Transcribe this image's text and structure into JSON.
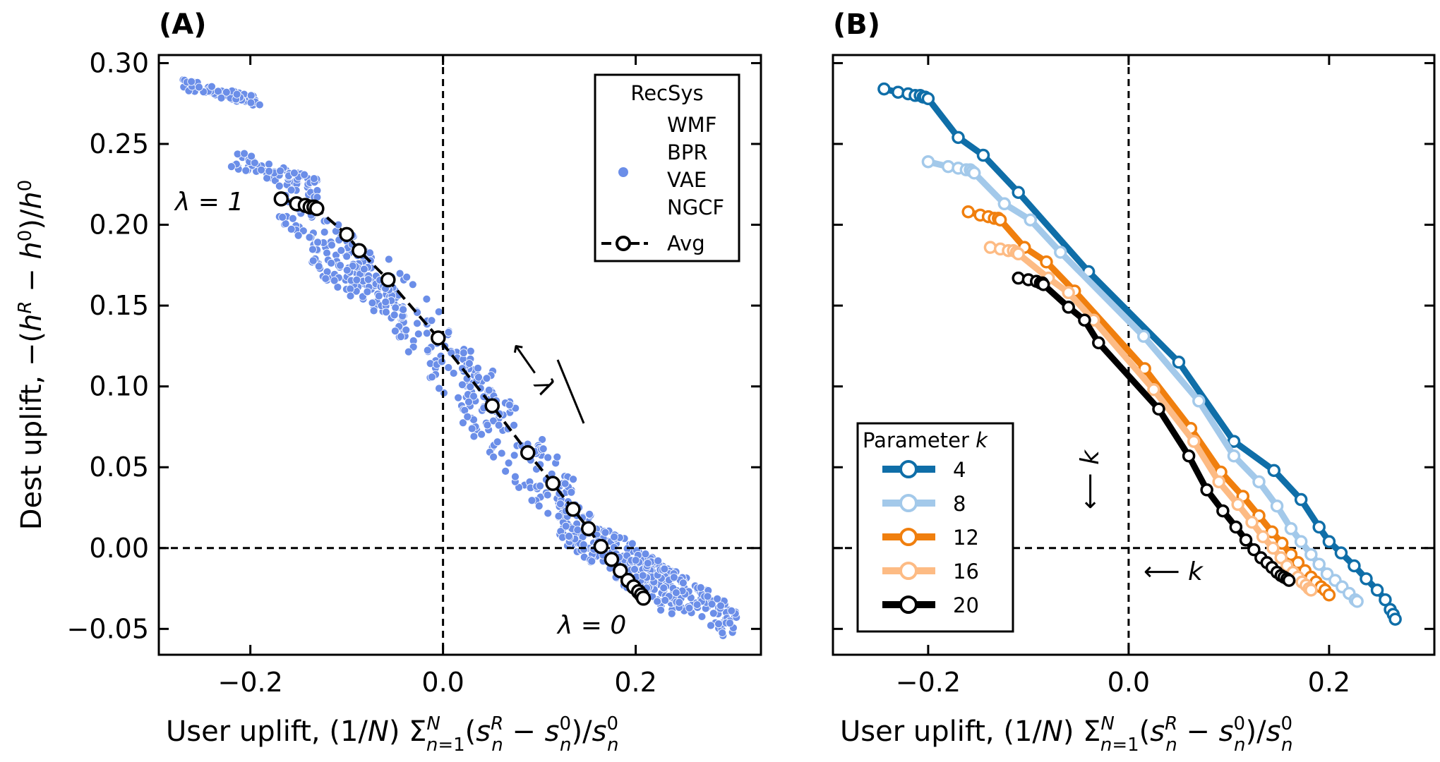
{
  "chart_data": [
    {
      "type": "scatter",
      "panel_label": "(A)",
      "xlabel": "User uplift,  (1/N) Σ_{n=1}^{N}(s_n^R − s_n^0)/s_n^0",
      "ylabel": "Dest uplift,  −(h^R − h^0)/h^0",
      "xlim": [
        -0.295,
        0.33
      ],
      "ylim": [
        -0.066,
        0.305
      ],
      "xticks": [
        "−0.2",
        "0.0",
        "0.2"
      ],
      "yticks": [
        "0.30",
        "0.25",
        "0.20",
        "0.15",
        "0.10",
        "0.05",
        "0.00",
        "−0.05"
      ],
      "reference_lines": {
        "x": 0.0,
        "y": 0.0,
        "style": "dashed"
      },
      "legend": {
        "title": "RecSys",
        "entries": [
          "WMF",
          "BPR",
          "VAE",
          "NGCF"
        ],
        "avg_label": "Avg",
        "placement": "top-right"
      },
      "annotations": {
        "lambda_one": "λ = 1",
        "lambda_zero": "λ = 0",
        "arrow": "⟵ λ"
      },
      "scatter_color": "#6b8ee8",
      "scatter_clusters": [
        {
          "x": [
            -0.27,
            -0.19
          ],
          "y": [
            0.276,
            0.287
          ],
          "n": 70
        },
        {
          "x": [
            -0.22,
            -0.13
          ],
          "y": [
            0.222,
            0.242
          ],
          "n": 70
        },
        {
          "x": [
            -0.17,
            -0.07
          ],
          "y": [
            0.17,
            0.215
          ],
          "n": 90
        },
        {
          "x": [
            -0.14,
            -0.04
          ],
          "y": [
            0.145,
            0.185
          ],
          "n": 90
        },
        {
          "x": [
            -0.06,
            0.06
          ],
          "y": [
            0.08,
            0.16
          ],
          "n": 110
        },
        {
          "x": [
            0.02,
            0.14
          ],
          "y": [
            0.02,
            0.1
          ],
          "n": 120
        },
        {
          "x": [
            0.12,
            0.24
          ],
          "y": [
            -0.03,
            0.02
          ],
          "n": 240
        },
        {
          "x": [
            0.2,
            0.305
          ],
          "y": [
            -0.048,
            -0.01
          ],
          "n": 130
        }
      ],
      "avg_series": {
        "name": "Avg",
        "x": [
          -0.168,
          -0.152,
          -0.143,
          -0.138,
          -0.134,
          -0.131,
          -0.1,
          -0.087,
          -0.057,
          -0.005,
          0.051,
          0.088,
          0.114,
          0.135,
          0.151,
          0.164,
          0.175,
          0.184,
          0.192,
          0.198,
          0.203,
          0.206,
          0.208
        ],
        "y": [
          0.216,
          0.213,
          0.212,
          0.211,
          0.211,
          0.21,
          0.194,
          0.184,
          0.166,
          0.13,
          0.088,
          0.059,
          0.04,
          0.024,
          0.012,
          0.001,
          -0.007,
          -0.014,
          -0.02,
          -0.024,
          -0.027,
          -0.029,
          -0.031
        ]
      }
    },
    {
      "type": "line",
      "panel_label": "(B)",
      "xlabel": "User uplift,  (1/N) Σ_{n=1}^{N}(s_n^R − s_n^0)/s_n^0",
      "xlim": [
        -0.295,
        0.305
      ],
      "ylim": [
        -0.066,
        0.305
      ],
      "xticks": [
        "−0.2",
        "0.0",
        "0.2"
      ],
      "reference_lines": {
        "x": 0.0,
        "y": 0.0,
        "style": "dashed"
      },
      "legend": {
        "title": "Parameter k",
        "placement": "lower-left"
      },
      "annotations": {
        "down_arrow": "⟵ k",
        "left_arrow": "⟵ k"
      },
      "series": [
        {
          "name": "4",
          "color": "#0f6ea8",
          "x": [
            -0.244,
            -0.23,
            -0.22,
            -0.213,
            -0.208,
            -0.205,
            -0.203,
            -0.2,
            -0.17,
            -0.145,
            -0.11,
            -0.04,
            0.05,
            0.105,
            0.145,
            0.172,
            0.19,
            0.2,
            0.212,
            0.225,
            0.237,
            0.248,
            0.256,
            0.261,
            0.264,
            0.266
          ],
          "y": [
            0.284,
            0.282,
            0.281,
            0.28,
            0.28,
            0.279,
            0.279,
            0.278,
            0.254,
            0.243,
            0.22,
            0.171,
            0.115,
            0.066,
            0.048,
            0.03,
            0.013,
            0.004,
            -0.003,
            -0.011,
            -0.019,
            -0.026,
            -0.032,
            -0.038,
            -0.041,
            -0.044
          ]
        },
        {
          "name": "8",
          "color": "#a3c9ea",
          "x": [
            -0.2,
            -0.18,
            -0.17,
            -0.162,
            -0.158,
            -0.156,
            -0.154,
            -0.124,
            -0.098,
            -0.068,
            0.015,
            0.07,
            0.105,
            0.13,
            0.148,
            0.162,
            0.172,
            0.182,
            0.19,
            0.198,
            0.206,
            0.213,
            0.22,
            0.226,
            0.228
          ],
          "y": [
            0.239,
            0.236,
            0.235,
            0.234,
            0.234,
            0.233,
            0.232,
            0.213,
            0.203,
            0.183,
            0.131,
            0.091,
            0.057,
            0.041,
            0.026,
            0.012,
            0.004,
            -0.004,
            -0.01,
            -0.016,
            -0.02,
            -0.024,
            -0.028,
            -0.032,
            -0.033
          ]
        },
        {
          "name": "12",
          "color": "#f07f0e",
          "x": [
            -0.16,
            -0.148,
            -0.14,
            -0.134,
            -0.13,
            -0.128,
            -0.104,
            -0.082,
            -0.054,
            0.016,
            0.062,
            0.092,
            0.114,
            0.13,
            0.143,
            0.153,
            0.162,
            0.169,
            0.176,
            0.182,
            0.187,
            0.192,
            0.196,
            0.2
          ],
          "y": [
            0.208,
            0.206,
            0.205,
            0.204,
            0.204,
            0.203,
            0.186,
            0.177,
            0.159,
            0.111,
            0.074,
            0.047,
            0.032,
            0.02,
            0.01,
            0.003,
            -0.004,
            -0.009,
            -0.014,
            -0.018,
            -0.021,
            -0.024,
            -0.026,
            -0.029
          ]
        },
        {
          "name": "16",
          "color": "#fdbb84",
          "x": [
            -0.138,
            -0.128,
            -0.12,
            -0.115,
            -0.112,
            -0.11,
            -0.08,
            -0.06,
            -0.035,
            0.025,
            0.065,
            0.09,
            0.109,
            0.123,
            0.134,
            0.144,
            0.152,
            0.158,
            0.164,
            0.169,
            0.173,
            0.177,
            0.18,
            0.182
          ],
          "y": [
            0.186,
            0.185,
            0.184,
            0.184,
            0.183,
            0.182,
            0.167,
            0.158,
            0.141,
            0.098,
            0.066,
            0.041,
            0.027,
            0.016,
            0.007,
            0.0,
            -0.006,
            -0.011,
            -0.015,
            -0.018,
            -0.021,
            -0.023,
            -0.025,
            -0.026
          ]
        },
        {
          "name": "20",
          "color": "#000000",
          "x": [
            -0.11,
            -0.1,
            -0.092,
            -0.088,
            -0.086,
            -0.085,
            -0.06,
            -0.044,
            -0.03,
            0.03,
            0.06,
            0.078,
            0.094,
            0.107,
            0.117,
            0.125,
            0.132,
            0.138,
            0.143,
            0.148,
            0.152,
            0.155,
            0.158,
            0.16
          ],
          "y": [
            0.167,
            0.166,
            0.165,
            0.164,
            0.164,
            0.163,
            0.149,
            0.141,
            0.127,
            0.086,
            0.057,
            0.036,
            0.023,
            0.013,
            0.005,
            -0.001,
            -0.006,
            -0.009,
            -0.012,
            -0.015,
            -0.017,
            -0.018,
            -0.019,
            -0.02
          ]
        }
      ]
    }
  ]
}
